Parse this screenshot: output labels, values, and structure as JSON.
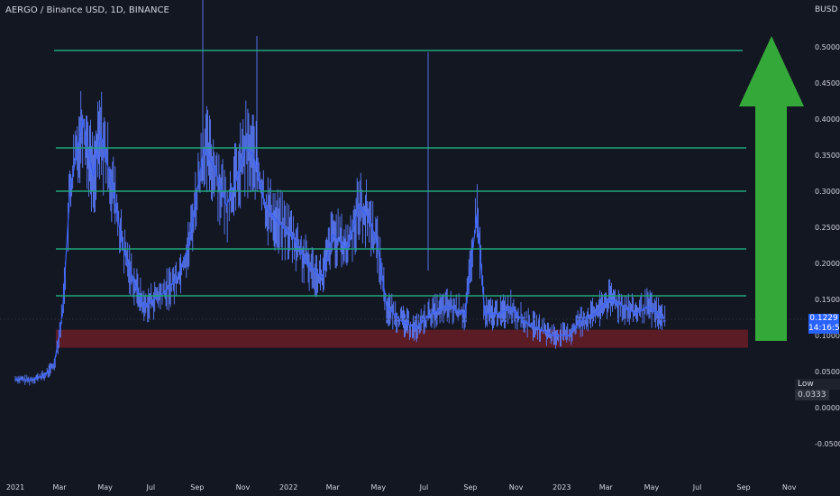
{
  "header": {
    "title": "AERGO / Binance USD, 1D, BINANCE",
    "currency": "BUSD"
  },
  "colors": {
    "background": "#131722",
    "candle": "#3a62f5",
    "wick": "#5b7cff",
    "level_line": "#1fa57a",
    "support_zone": "rgba(130,30,40,0.65)",
    "arrow": "#35a83a",
    "axis_text": "#d1d4dc"
  },
  "price_badge": {
    "price": "0.1229",
    "countdown": "14:16:50"
  },
  "low_badge": {
    "label": "Low",
    "value": "0.0333"
  },
  "chart_data": {
    "type": "line",
    "y_axis": {
      "min": -0.06,
      "max": 0.52,
      "ticks": [
        0.5,
        0.45,
        0.4,
        0.35,
        0.3,
        0.25,
        0.2,
        0.15,
        0.1,
        0.05,
        0.0,
        -0.05
      ],
      "tick_labels": [
        "0.5000",
        "0.4500",
        "0.4000",
        "0.3500",
        "0.3000",
        "0.2500",
        "0.2000",
        "0.1500",
        "0.1000",
        "0.0500",
        "0.0000",
        "-0.0500"
      ]
    },
    "x_axis": {
      "start": "2021-01-01",
      "end": "2023-11-30",
      "ticks": [
        "2021-01-01",
        "2021-03-01",
        "2021-05-01",
        "2021-07-01",
        "2021-09-01",
        "2021-11-01",
        "2022-01-01",
        "2022-03-01",
        "2022-05-01",
        "2022-07-01",
        "2022-09-01",
        "2022-11-01",
        "2023-01-01",
        "2023-03-01",
        "2023-05-01",
        "2023-07-01",
        "2023-09-01",
        "2023-11-01"
      ],
      "tick_labels": [
        "2021",
        "Mar",
        "May",
        "Jul",
        "Sep",
        "Nov",
        "2022",
        "Mar",
        "May",
        "Jul",
        "Sep",
        "Nov",
        "2023",
        "Mar",
        "May",
        "Jul",
        "Sep",
        "Nov"
      ]
    },
    "series": [
      {
        "x": [
          "2021-01-01",
          "2021-01-20",
          "2021-02-10",
          "2021-02-22",
          "2021-03-05",
          "2021-03-15",
          "2021-04-01",
          "2021-04-15",
          "2021-04-25",
          "2021-05-12",
          "2021-05-25",
          "2021-06-10",
          "2021-06-22",
          "2021-07-05",
          "2021-07-20",
          "2021-08-05",
          "2021-08-20",
          "2021-09-01",
          "2021-09-10",
          "2021-09-25",
          "2021-10-10",
          "2021-10-25",
          "2021-11-05",
          "2021-11-15",
          "2021-12-01",
          "2021-12-15",
          "2022-01-05",
          "2022-01-25",
          "2022-02-15",
          "2022-03-01",
          "2022-03-20",
          "2022-04-05",
          "2022-04-20",
          "2022-05-01",
          "2022-05-12",
          "2022-06-01",
          "2022-06-20",
          "2022-07-10",
          "2022-08-01",
          "2022-08-25",
          "2022-09-10",
          "2022-09-20",
          "2022-10-10",
          "2022-10-25",
          "2022-11-10",
          "2022-12-01",
          "2022-12-20",
          "2023-01-10",
          "2023-01-25",
          "2023-02-15",
          "2023-03-05",
          "2023-03-25",
          "2023-04-10",
          "2023-04-25",
          "2023-05-10",
          "2023-05-20"
        ],
        "values": [
          0.04,
          0.038,
          0.045,
          0.06,
          0.13,
          0.3,
          0.4,
          0.32,
          0.38,
          0.3,
          0.22,
          0.17,
          0.14,
          0.15,
          0.16,
          0.18,
          0.22,
          0.3,
          0.36,
          0.33,
          0.28,
          0.32,
          0.36,
          0.35,
          0.28,
          0.26,
          0.24,
          0.2,
          0.18,
          0.24,
          0.22,
          0.28,
          0.26,
          0.22,
          0.14,
          0.12,
          0.11,
          0.13,
          0.14,
          0.13,
          0.27,
          0.13,
          0.13,
          0.14,
          0.12,
          0.11,
          0.1,
          0.1,
          0.12,
          0.13,
          0.15,
          0.14,
          0.13,
          0.14,
          0.13,
          0.12
        ]
      }
    ],
    "horizontal_levels": [
      0.495,
      0.36,
      0.3,
      0.22,
      0.155
    ],
    "support_zone": [
      0.083,
      0.108
    ]
  }
}
